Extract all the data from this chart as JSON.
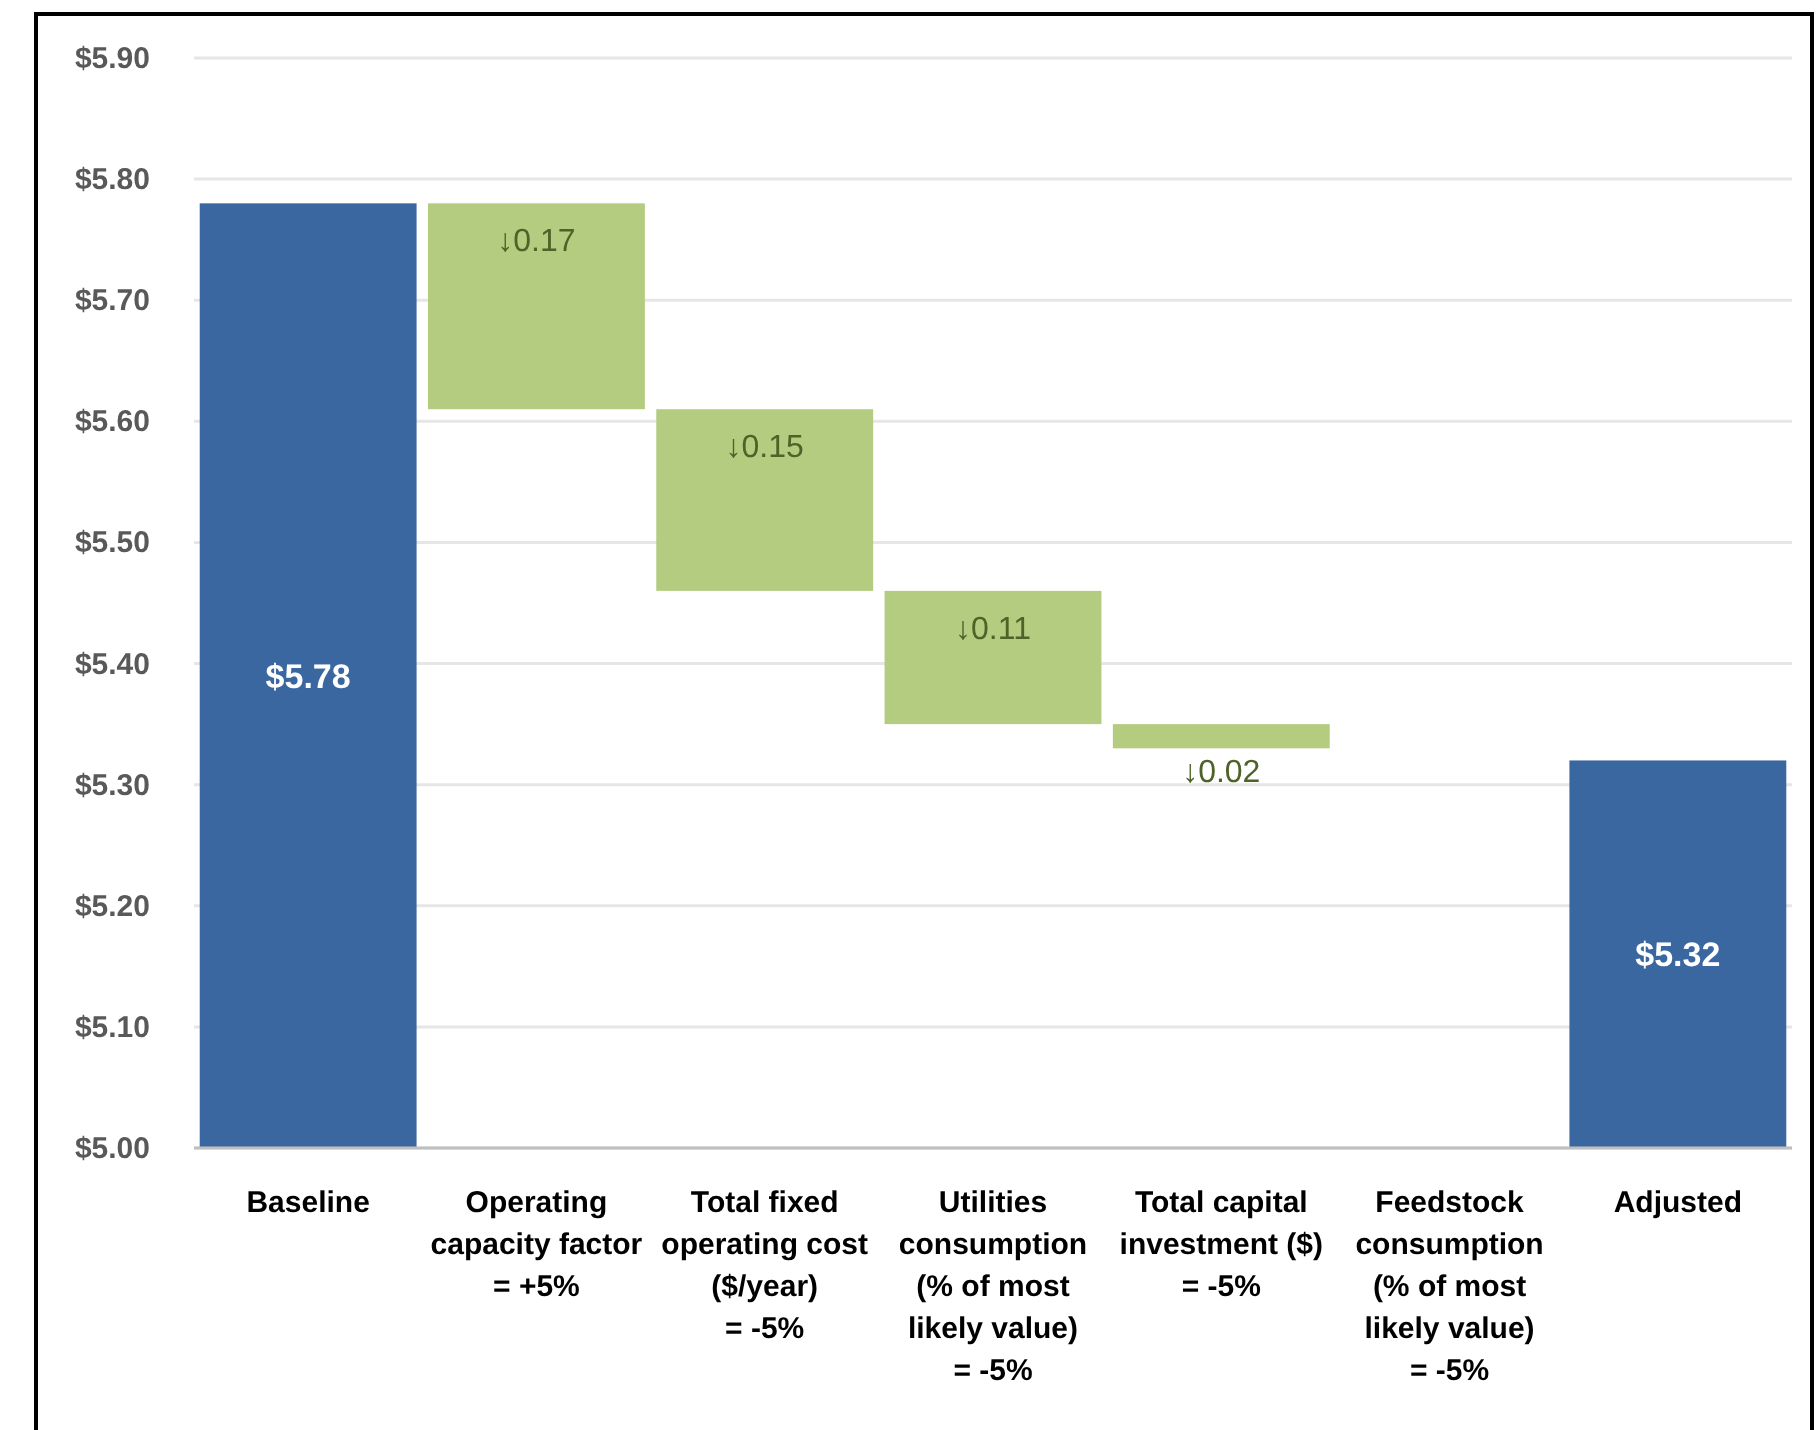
{
  "chart_data": {
    "type": "bar",
    "categories": [
      "Baseline",
      "Operating capacity factor = +5%",
      "Total fixed operating cost ($/year) = -5%",
      "Utilities consumption (% of most likely value) = -5%",
      "Total capital investment ($) = -5%",
      "Feedstock consumption (% of most likely value) = -5%",
      "Adjusted"
    ],
    "base": [
      5.0,
      5.78,
      5.61,
      5.46,
      5.35,
      null,
      5.0
    ],
    "values": [
      0.78,
      -0.17,
      -0.15,
      -0.11,
      -0.02,
      null,
      0.32
    ],
    "colors": [
      "#3a67a0",
      "#b3cc80",
      "#b3cc80",
      "#b3cc80",
      "#b3cc80",
      null,
      "#3a67a0"
    ],
    "value_labels": [
      "$5.78",
      "↓0.17",
      "↓0.15",
      "↓0.11",
      "↓0.02",
      null,
      "$5.32"
    ],
    "ylim": [
      5.0,
      5.9
    ],
    "yticks": [
      {
        "value": 5.0,
        "label": "$5.00"
      },
      {
        "value": 5.1,
        "label": "$5.10"
      },
      {
        "value": 5.2,
        "label": "$5.20"
      },
      {
        "value": 5.3,
        "label": "$5.30"
      },
      {
        "value": 5.4,
        "label": "$5.40"
      },
      {
        "value": 5.5,
        "label": "$5.50"
      },
      {
        "value": 5.6,
        "label": "$5.60"
      },
      {
        "value": 5.7,
        "label": "$5.70"
      },
      {
        "value": 5.8,
        "label": "$5.80"
      },
      {
        "value": 5.9,
        "label": "$5.90"
      }
    ],
    "grid": "y"
  }
}
